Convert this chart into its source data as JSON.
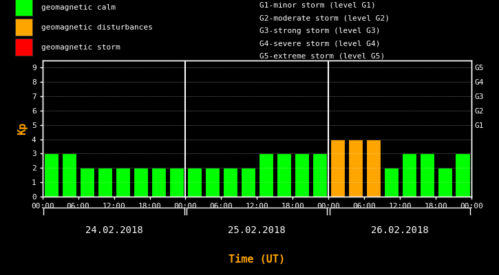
{
  "bg_color": "#000000",
  "bar_edge_color": "#000000",
  "axis_color": "#ffffff",
  "title_x_label": "Time (UT)",
  "title_x_color": "#ffa500",
  "ylabel": "Kp",
  "ylabel_color": "#ffa500",
  "ylim": [
    0,
    9.5
  ],
  "yticks": [
    0,
    1,
    2,
    3,
    4,
    5,
    6,
    7,
    8,
    9
  ],
  "day_labels": [
    "24.02.2018",
    "25.02.2018",
    "26.02.2018"
  ],
  "xtick_labels": [
    "00:00",
    "06:00",
    "12:00",
    "18:00",
    "00:00",
    "06:00",
    "12:00",
    "18:00",
    "00:00",
    "06:00",
    "12:00",
    "18:00",
    "00:00"
  ],
  "bar_values": [
    3,
    3,
    2,
    2,
    2,
    2,
    2,
    2,
    2,
    2,
    2,
    2,
    3,
    3,
    3,
    3,
    4,
    4,
    4,
    2,
    3,
    3,
    2,
    3
  ],
  "bar_colors": [
    "#00ff00",
    "#00ff00",
    "#00ff00",
    "#00ff00",
    "#00ff00",
    "#00ff00",
    "#00ff00",
    "#00ff00",
    "#00ff00",
    "#00ff00",
    "#00ff00",
    "#00ff00",
    "#00ff00",
    "#00ff00",
    "#00ff00",
    "#00ff00",
    "#ffa500",
    "#ffa500",
    "#ffa500",
    "#00ff00",
    "#00ff00",
    "#00ff00",
    "#00ff00",
    "#00ff00"
  ],
  "legend_items": [
    {
      "label": "geomagnetic calm",
      "color": "#00ff00"
    },
    {
      "label": "geomagnetic disturbances",
      "color": "#ffa500"
    },
    {
      "label": "geomagnetic storm",
      "color": "#ff0000"
    }
  ],
  "right_labels": [
    "G5",
    "G4",
    "G3",
    "G2",
    "G1"
  ],
  "right_label_yticks": [
    9,
    8,
    7,
    6,
    5
  ],
  "storm_legend": [
    "G1-minor storm (level G1)",
    "G2-moderate storm (level G2)",
    "G3-strong storm (level G3)",
    "G4-severe storm (level G4)",
    "G5-extreme storm (level G5)"
  ],
  "font_family": "monospace",
  "font_size_legend": 8,
  "font_size_axis": 8,
  "font_size_day": 10,
  "font_size_xlabel": 11,
  "font_size_ylabel": 11
}
